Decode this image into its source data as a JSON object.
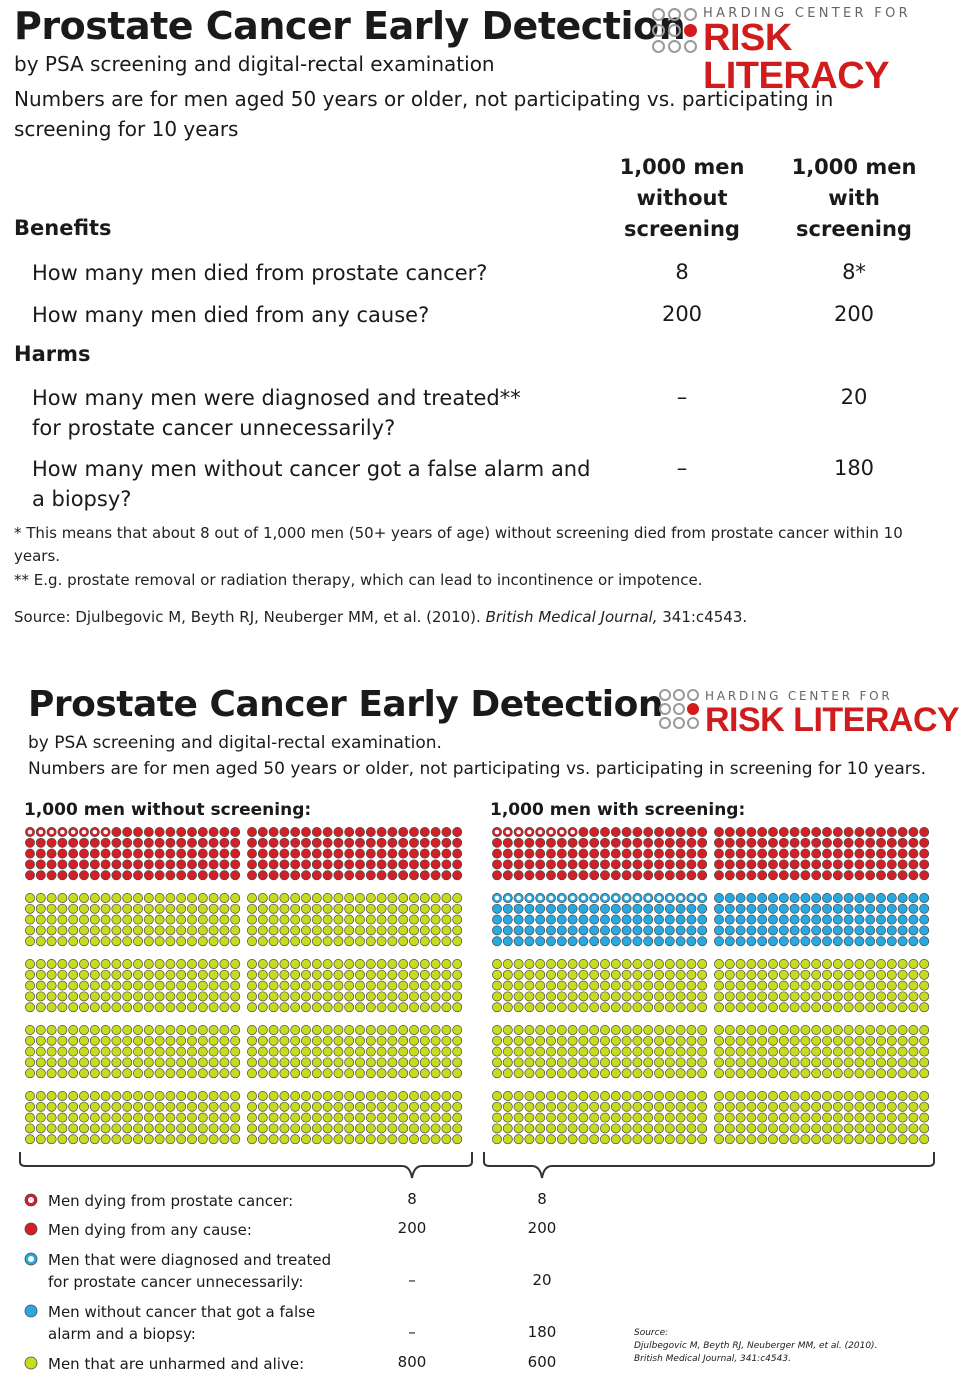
{
  "top": {
    "title": "Prostate Cancer Early Detection",
    "subtitle": "by PSA screening and digital-rectal examination",
    "description": "Numbers are for men aged 50 years or older, not participating vs. participating in screening for 10 years",
    "col_without": "1,000 men\nwithout\nscreening",
    "col_with": "1,000 men\nwith\nscreening",
    "benefits_label": "Benefits",
    "harms_label": "Harms",
    "rows": [
      {
        "q": "How many men died from prostate cancer?",
        "without": "8",
        "with": "8*"
      },
      {
        "q": "How many men died from any cause?",
        "without": "200",
        "with": "200"
      },
      {
        "q": "How many men were diagnosed and treated**\n   for prostate cancer unnecessarily?",
        "without": "–",
        "with": "20"
      },
      {
        "q": "How many men without cancer got a false alarm and\n   a biopsy?",
        "without": "–",
        "with": "180"
      }
    ],
    "footnote1": "* This means that about 8 out of 1,000 men (50+ years of age) without screening died from prostate cancer within 10 years.",
    "footnote2": "** E.g. prostate removal or radiation therapy, which can lead to incontinence or impotence.",
    "source_prefix": "Source: Djulbegovic M, Beyth RJ, Neuberger MM, et al. (2010). ",
    "source_journal": "British Medical Journal,",
    "source_suffix": " 341:c4543."
  },
  "logo": {
    "line1": "HARDING CENTER FOR",
    "line2": "RISK LITERACY"
  },
  "bottom": {
    "title": "Prostate Cancer Early Detection",
    "subtitle": "by PSA screening and digital-rectal examination.",
    "description": "Numbers are for men aged 50 years or older, not participating vs. participating in screening for 10 years.",
    "grid_without_label": "1,000 men without screening:",
    "grid_with_label": "1,000 men with screening:",
    "legend": [
      {
        "label": "Men dying from prostate cancer:",
        "without": "8",
        "with": "8",
        "icon": "red-outline-circle-icon"
      },
      {
        "label": "Men dying from any cause:",
        "without": "200",
        "with": "200",
        "icon": "red-circle-icon"
      },
      {
        "label": "Men that were diagnosed and treated\nfor prostate cancer unnecessarily:",
        "without": "–",
        "with": "20",
        "icon": "blue-outline-circle-icon"
      },
      {
        "label": "Men without cancer that got a false\nalarm and a biopsy:",
        "without": "–",
        "with": "180",
        "icon": "blue-circle-icon"
      },
      {
        "label": "Men that are unharmed and alive:",
        "without": "800",
        "with": "600",
        "icon": "yellow-circle-icon"
      }
    ],
    "source_label": "Source:",
    "source_line1": "Djulbegovic M, Beyth RJ, Neuberger MM, et al. (2010).",
    "source_line2": "British Medical Journal, 341:c4543."
  },
  "icon_grid": {
    "without_screening": {
      "prostate_cancer_deaths": 8,
      "any_cause_deaths": 200,
      "overtreated": 0,
      "false_alarm": 0,
      "unharmed": 800
    },
    "with_screening": {
      "prostate_cancer_deaths": 8,
      "any_cause_deaths": 200,
      "overtreated": 20,
      "false_alarm": 180,
      "unharmed": 600
    }
  },
  "colors": {
    "red": "#d41f26",
    "blue": "#27a9e1",
    "yellow": "#c8dc1e",
    "outline": "#4a4a4a",
    "brand_red": "#d01c1c"
  }
}
